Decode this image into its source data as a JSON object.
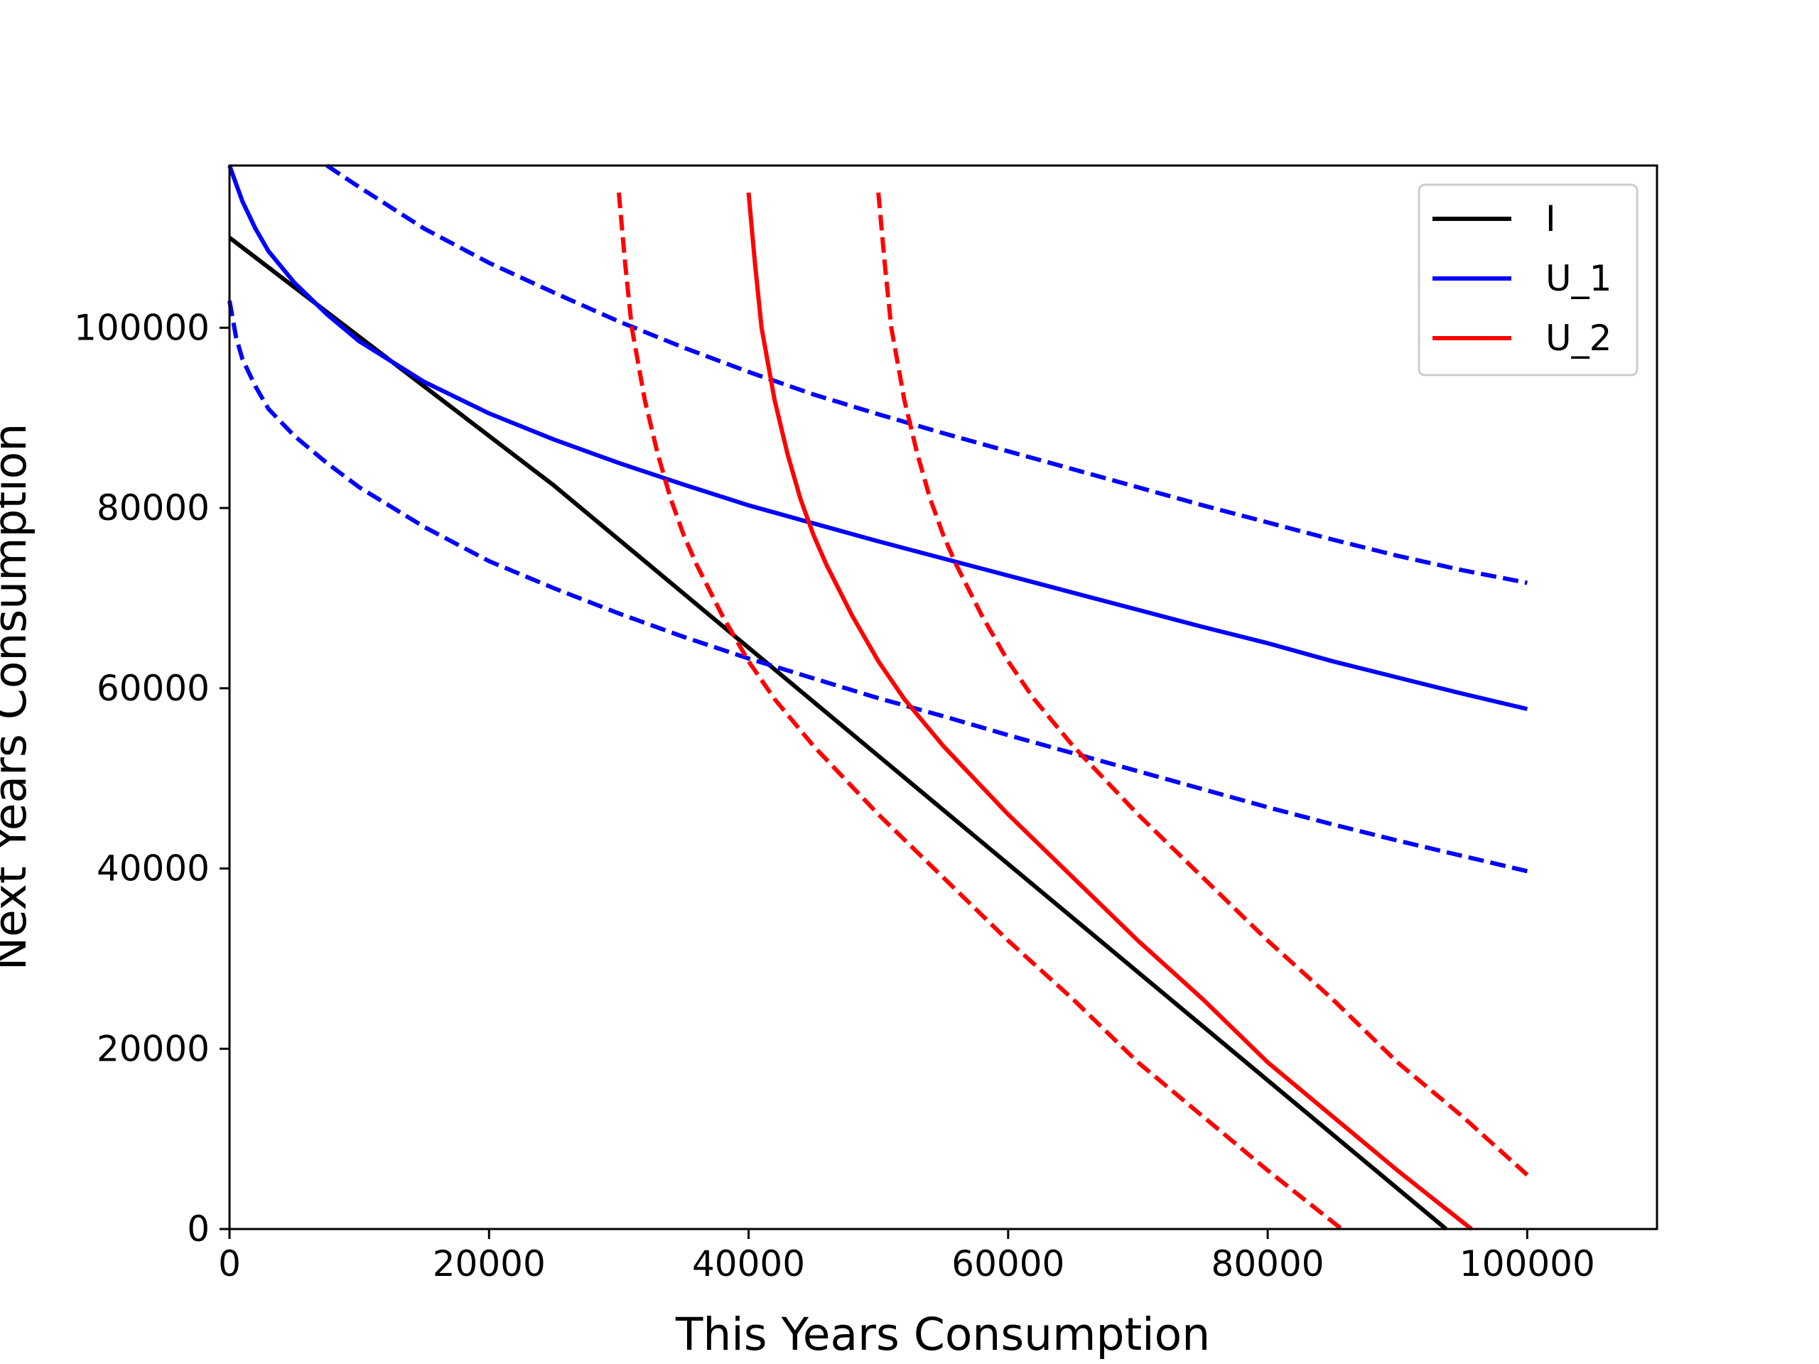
{
  "chart_data": {
    "type": "line",
    "xlabel": "This Years Consumption",
    "ylabel": "Next Years Consumption",
    "xlim": [
      0,
      110000
    ],
    "ylim": [
      0,
      118000
    ],
    "xticks": [
      0,
      20000,
      40000,
      60000,
      80000,
      100000
    ],
    "yticks": [
      0,
      20000,
      40000,
      60000,
      80000,
      100000
    ],
    "legend_position": "top-right",
    "grid": false,
    "series": [
      {
        "name": "I",
        "color": "#000000",
        "dash": "solid",
        "legend": true,
        "x": [
          0,
          25000,
          40000,
          50000,
          60000,
          70000,
          80000,
          90000,
          93750
        ],
        "y": [
          110000,
          82500,
          64500,
          52500,
          40500,
          28500,
          16500,
          4500,
          0
        ]
      },
      {
        "name": "U_1",
        "color": "#0000ff",
        "dash": "solid",
        "legend": true,
        "x": [
          0,
          500,
          1000,
          2000,
          3000,
          5000,
          7500,
          10000,
          15000,
          20000,
          25000,
          30000,
          35000,
          40000,
          45000,
          50000,
          55000,
          60000,
          65000,
          70000,
          75000,
          80000,
          85000,
          90000,
          95000,
          100000
        ],
        "y": [
          118000,
          116000,
          114000,
          111000,
          108500,
          105000,
          101500,
          98500,
          94000,
          90500,
          87600,
          85000,
          82600,
          80300,
          78300,
          76300,
          74400,
          72500,
          70600,
          68700,
          66800,
          65000,
          63000,
          61200,
          59400,
          57700
        ]
      },
      {
        "name": "",
        "color": "#0000ff",
        "dash": "dashed",
        "legend": false,
        "x": [
          7500,
          10000,
          15000,
          20000,
          25000,
          30000,
          35000,
          40000,
          45000,
          50000,
          55000,
          60000,
          65000,
          70000,
          75000,
          80000,
          85000,
          90000,
          95000,
          100000
        ],
        "y": [
          118000,
          115600,
          111000,
          107200,
          103900,
          100700,
          97800,
          95100,
          92600,
          90400,
          88300,
          86300,
          84300,
          82300,
          80300,
          78400,
          76500,
          74700,
          73100,
          71700
        ]
      },
      {
        "name": "",
        "color": "#0000ff",
        "dash": "dashed",
        "legend": false,
        "x": [
          0,
          500,
          1000,
          2000,
          3000,
          5000,
          7500,
          10000,
          15000,
          20000,
          25000,
          30000,
          35000,
          40000,
          45000,
          50000,
          55000,
          60000,
          65000,
          70000,
          75000,
          80000,
          85000,
          90000,
          95000,
          100000
        ],
        "y": [
          103000,
          99000,
          96500,
          93500,
          91000,
          88000,
          85000,
          82300,
          77900,
          74100,
          71100,
          68300,
          65700,
          63300,
          61100,
          58900,
          56900,
          54800,
          52800,
          50800,
          48800,
          46800,
          44900,
          43100,
          41400,
          39700
        ]
      },
      {
        "name": "U_2",
        "color": "#ff0000",
        "dash": "solid",
        "legend": true,
        "x": [
          40000,
          40500,
          41000,
          42000,
          43000,
          44000,
          45000,
          46000,
          48000,
          50000,
          52000,
          55000,
          60000,
          65000,
          70000,
          75000,
          80000,
          85000,
          90000,
          95700
        ],
        "y": [
          115000,
          107000,
          100000,
          92000,
          86000,
          81000,
          77000,
          73700,
          68000,
          63000,
          58800,
          53600,
          46000,
          39000,
          32000,
          25500,
          18500,
          12500,
          6500,
          0
        ]
      },
      {
        "name": "",
        "color": "#ff0000",
        "dash": "dashed",
        "legend": false,
        "x": [
          30000,
          30500,
          31000,
          32000,
          33000,
          34000,
          35000,
          36000,
          38000,
          40000,
          42000,
          45000,
          50000,
          55000,
          60000,
          65000,
          70000,
          75000,
          80000,
          85700
        ],
        "y": [
          115000,
          107000,
          100000,
          92000,
          86000,
          81000,
          77000,
          73700,
          68000,
          63000,
          58800,
          53600,
          46000,
          39000,
          32000,
          25500,
          18500,
          12500,
          6500,
          0
        ]
      },
      {
        "name": "",
        "color": "#ff0000",
        "dash": "dashed",
        "legend": false,
        "x": [
          50000,
          50500,
          51000,
          52000,
          53000,
          54000,
          55000,
          56000,
          58000,
          60000,
          62000,
          65000,
          70000,
          75000,
          80000,
          85000,
          90000,
          95000,
          100000
        ],
        "y": [
          115000,
          107000,
          100000,
          92000,
          86000,
          81000,
          77000,
          73700,
          68000,
          63000,
          58800,
          53600,
          46000,
          39000,
          32000,
          25500,
          18500,
          12500,
          6000
        ]
      }
    ]
  }
}
